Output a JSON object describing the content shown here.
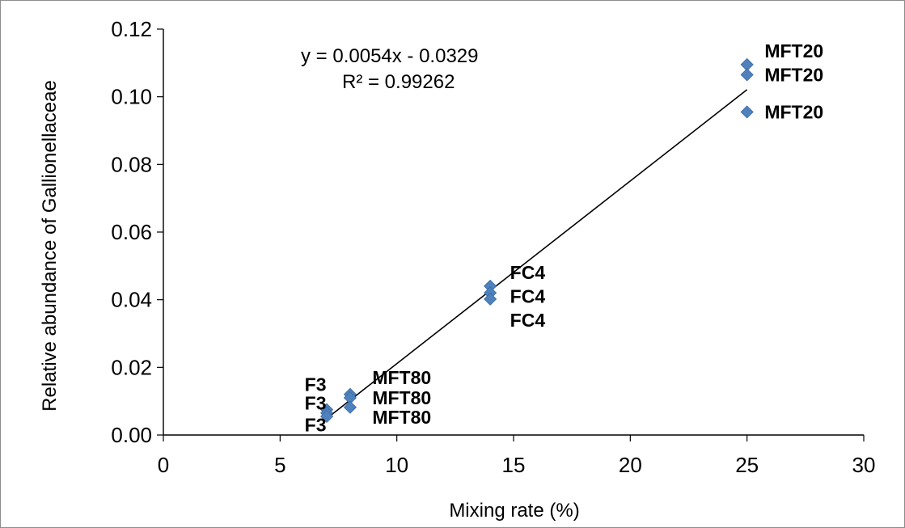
{
  "chart_data": {
    "type": "scatter",
    "xlabel": "Mixing rate (%)",
    "ylabel": "Relative abundance of Gallionellaceae",
    "xlim": [
      0,
      30
    ],
    "ylim": [
      0,
      0.12
    ],
    "xticks": [
      "0",
      "5",
      "10",
      "15",
      "20",
      "25",
      "30"
    ],
    "yticks": [
      "0.00",
      "0.02",
      "0.04",
      "0.06",
      "0.08",
      "0.10",
      "0.12"
    ],
    "marker_color": "#4f81bd",
    "grid": false,
    "points": [
      {
        "x": 7,
        "y": 0.0075
      },
      {
        "x": 7,
        "y": 0.0065
      },
      {
        "x": 7,
        "y": 0.0055
      },
      {
        "x": 8,
        "y": 0.012
      },
      {
        "x": 8,
        "y": 0.011
      },
      {
        "x": 8,
        "y": 0.0082
      },
      {
        "x": 14,
        "y": 0.044
      },
      {
        "x": 14,
        "y": 0.042
      },
      {
        "x": 14,
        "y": 0.0402
      },
      {
        "x": 25,
        "y": 0.1095
      },
      {
        "x": 25,
        "y": 0.1065
      },
      {
        "x": 25,
        "y": 0.0955
      }
    ],
    "point_labels": [
      {
        "text": "F3",
        "x": 6.05,
        "y": 0.015
      },
      {
        "text": "F3",
        "x": 6.05,
        "y": 0.0095
      },
      {
        "text": "F3",
        "x": 6.05,
        "y": 0.003
      },
      {
        "text": "MFT80",
        "x": 8.95,
        "y": 0.017
      },
      {
        "text": "MFT80",
        "x": 8.95,
        "y": 0.011
      },
      {
        "text": "MFT80",
        "x": 8.95,
        "y": 0.0052
      },
      {
        "text": "FC4",
        "x": 14.85,
        "y": 0.048
      },
      {
        "text": "FC4",
        "x": 14.85,
        "y": 0.041
      },
      {
        "text": "FC4",
        "x": 14.85,
        "y": 0.034
      },
      {
        "text": "MFT20",
        "x": 25.75,
        "y": 0.1135
      },
      {
        "text": "MFT20",
        "x": 25.75,
        "y": 0.1065
      },
      {
        "text": "MFT20",
        "x": 25.75,
        "y": 0.0955
      }
    ],
    "trendline": {
      "slope": 0.0054,
      "intercept": -0.0329,
      "x_range": [
        7,
        25
      ],
      "color": "#000000",
      "equation": "y = 0.0054x - 0.0329",
      "r_squared": "R² = 0.99262"
    }
  }
}
